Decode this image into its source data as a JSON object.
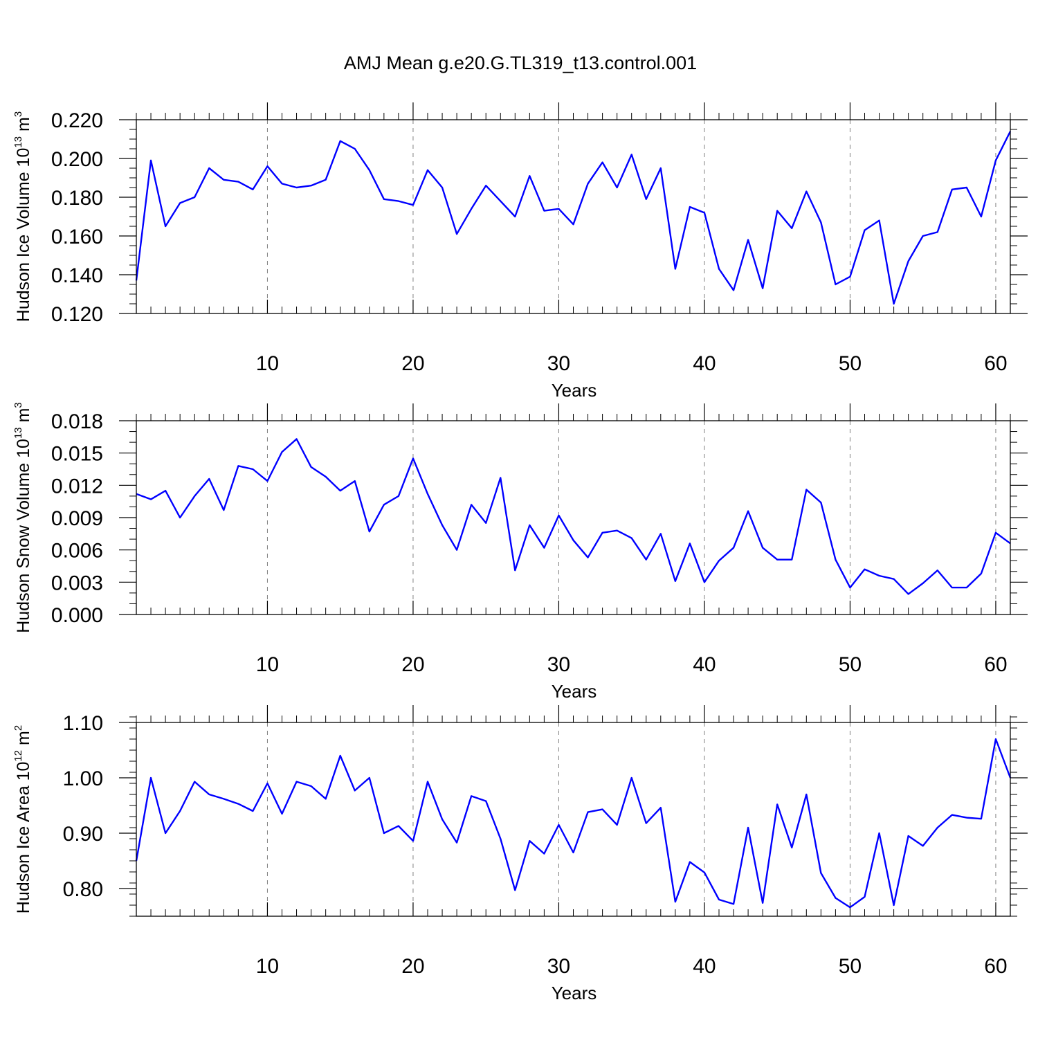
{
  "title": "AMJ Mean g.e20.G.TL319_t13.control.001",
  "colors": {
    "line": "#0000ff",
    "axis": "#000000",
    "grid": "#808080"
  },
  "chart_data": [
    {
      "type": "line",
      "name": "ice-volume",
      "ylabel_main": "Hudson Ice Volume 10",
      "ylabel_exp": "13",
      "ylabel_unit": " m",
      "ylabel_unit_exp": "3",
      "xlabel": "Years",
      "xlim": [
        1,
        61
      ],
      "ylim": [
        0.12,
        0.22
      ],
      "xticks": [
        10,
        20,
        30,
        40,
        50,
        60
      ],
      "xtick_labels": [
        "10",
        "20",
        "30",
        "40",
        "50",
        "60"
      ],
      "yticks": [
        0.12,
        0.14,
        0.16,
        0.18,
        0.2,
        0.22
      ],
      "ytick_labels": [
        "0.120",
        "0.140",
        "0.160",
        "0.180",
        "0.200",
        "0.220"
      ],
      "ymin_step": 0.005,
      "values": [
        0.137,
        0.199,
        0.165,
        0.177,
        0.18,
        0.195,
        0.189,
        0.188,
        0.184,
        0.196,
        0.187,
        0.185,
        0.186,
        0.189,
        0.209,
        0.205,
        0.194,
        0.179,
        0.178,
        0.176,
        0.194,
        0.185,
        0.161,
        0.174,
        0.186,
        0.178,
        0.17,
        0.191,
        0.173,
        0.174,
        0.166,
        0.187,
        0.198,
        0.185,
        0.202,
        0.179,
        0.195,
        0.143,
        0.175,
        0.172,
        0.143,
        0.132,
        0.158,
        0.133,
        0.173,
        0.164,
        0.183,
        0.167,
        0.135,
        0.139,
        0.163,
        0.168,
        0.125,
        0.147,
        0.16,
        0.162,
        0.184,
        0.185,
        0.17,
        0.199,
        0.214
      ]
    },
    {
      "type": "line",
      "name": "snow-volume",
      "ylabel_main": "Hudson Snow Volume 10",
      "ylabel_exp": "13",
      "ylabel_unit": " m",
      "ylabel_unit_exp": "3",
      "xlabel": "Years",
      "xlim": [
        1,
        61
      ],
      "ylim": [
        0.0,
        0.018
      ],
      "xticks": [
        10,
        20,
        30,
        40,
        50,
        60
      ],
      "xtick_labels": [
        "10",
        "20",
        "30",
        "40",
        "50",
        "60"
      ],
      "yticks": [
        0.0,
        0.003,
        0.006,
        0.009,
        0.012,
        0.015,
        0.018
      ],
      "ytick_labels": [
        "0.000",
        "0.003",
        "0.006",
        "0.009",
        "0.012",
        "0.015",
        "0.018"
      ],
      "ymin_step": 0.001,
      "values": [
        0.0112,
        0.0107,
        0.0115,
        0.009,
        0.011,
        0.0126,
        0.0097,
        0.0138,
        0.0135,
        0.0124,
        0.0151,
        0.0163,
        0.0137,
        0.0128,
        0.0115,
        0.0124,
        0.0077,
        0.0102,
        0.011,
        0.0145,
        0.0112,
        0.0083,
        0.006,
        0.0102,
        0.0085,
        0.0127,
        0.0041,
        0.0083,
        0.0062,
        0.0092,
        0.0069,
        0.0053,
        0.0076,
        0.0078,
        0.0071,
        0.0051,
        0.0075,
        0.0031,
        0.0066,
        0.003,
        0.005,
        0.0062,
        0.0096,
        0.0062,
        0.0051,
        0.0051,
        0.0116,
        0.0104,
        0.0051,
        0.0025,
        0.0042,
        0.0036,
        0.0033,
        0.0019,
        0.0029,
        0.0041,
        0.0025,
        0.0025,
        0.0038,
        0.0076,
        0.0066
      ]
    },
    {
      "type": "line",
      "name": "ice-area",
      "ylabel_main": "Hudson Ice Area 10",
      "ylabel_exp": "12",
      "ylabel_unit": " m",
      "ylabel_unit_exp": "2",
      "xlabel": "Years",
      "xlim": [
        1,
        61
      ],
      "ylim": [
        0.75,
        1.1
      ],
      "xticks": [
        10,
        20,
        30,
        40,
        50,
        60
      ],
      "xtick_labels": [
        "10",
        "20",
        "30",
        "40",
        "50",
        "60"
      ],
      "yticks": [
        0.8,
        0.9,
        1.0,
        1.1
      ],
      "ytick_labels": [
        "0.80",
        "0.90",
        "1.00",
        "1.10"
      ],
      "ymin_step": 0.02,
      "values": [
        0.85,
        1.0,
        0.9,
        0.94,
        0.993,
        0.97,
        0.962,
        0.953,
        0.94,
        0.99,
        0.935,
        0.993,
        0.985,
        0.962,
        1.04,
        0.977,
        1.0,
        0.9,
        0.913,
        0.886,
        0.993,
        0.925,
        0.883,
        0.967,
        0.958,
        0.89,
        0.797,
        0.886,
        0.863,
        0.915,
        0.865,
        0.938,
        0.943,
        0.915,
        1.0,
        0.918,
        0.946,
        0.776,
        0.848,
        0.829,
        0.78,
        0.772,
        0.91,
        0.774,
        0.952,
        0.874,
        0.97,
        0.828,
        0.783,
        0.766,
        0.785,
        0.9,
        0.77,
        0.895,
        0.877,
        0.91,
        0.933,
        0.928,
        0.926,
        1.07,
        1.0
      ]
    }
  ]
}
